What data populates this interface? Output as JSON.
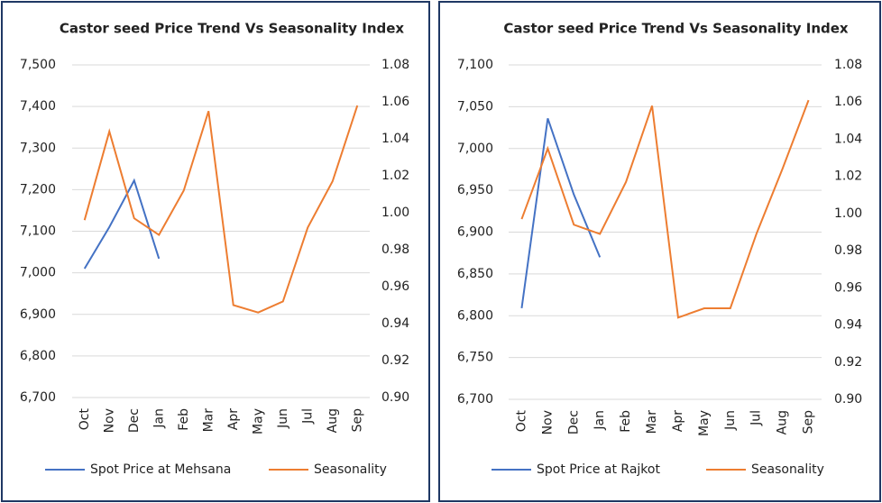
{
  "chart_data": [
    {
      "type": "line",
      "title": "Castor seed Price Trend Vs Seasonality Index",
      "categories": [
        "Oct",
        "Nov",
        "Dec",
        "Jan",
        "Feb",
        "Mar",
        "Apr",
        "May",
        "Jun",
        "Jul",
        "Aug",
        "Sep"
      ],
      "series": [
        {
          "name": "Spot Price at Mehsana",
          "color": "#4472c4",
          "values": [
            7010,
            7110,
            7222,
            7034,
            null,
            null,
            null,
            null,
            null,
            null,
            null,
            null
          ]
        },
        {
          "name": "Seasonality",
          "color": "#ed7d31",
          "axis": "y2",
          "values": [
            0.996,
            1.044,
            0.997,
            0.988,
            1.012,
            1.055,
            0.95,
            0.946,
            0.952,
            0.992,
            1.017,
            1.058
          ]
        }
      ],
      "ylim": [
        6700,
        7500
      ],
      "yticks": [
        {
          "value": 6700,
          "label": "6,700"
        },
        {
          "value": 6800,
          "label": "6,800"
        },
        {
          "value": 6900,
          "label": "6,900"
        },
        {
          "value": 7000,
          "label": "7,000"
        },
        {
          "value": 7100,
          "label": "7,100"
        },
        {
          "value": 7200,
          "label": "7,200"
        },
        {
          "value": 7300,
          "label": "7,300"
        },
        {
          "value": 7400,
          "label": "7,400"
        },
        {
          "value": 7500,
          "label": "7,500"
        }
      ],
      "y2lim": [
        0.9,
        1.08
      ],
      "y2ticks": [
        {
          "value": 0.9,
          "label": "0.90"
        },
        0.92,
        0.94,
        0.96,
        0.98,
        {
          "value": 1,
          "label": "1.00"
        },
        1.02,
        1.04,
        1.06,
        1.08
      ],
      "grid": true,
      "legend": "bottom"
    },
    {
      "type": "line",
      "title": "Castor seed Price Trend Vs Seasonality Index",
      "categories": [
        "Oct",
        "Nov",
        "Dec",
        "Jan",
        "Feb",
        "Mar",
        "Apr",
        "May",
        "Jun",
        "Jul",
        "Aug",
        "Sep"
      ],
      "series": [
        {
          "name": "Spot Price at Rajkot",
          "color": "#4472c4",
          "values": [
            6809,
            7036,
            6945,
            6870,
            null,
            null,
            null,
            null,
            null,
            null,
            null,
            null
          ]
        },
        {
          "name": "Seasonality",
          "color": "#ed7d31",
          "axis": "y2",
          "values": [
            0.997,
            1.035,
            0.994,
            0.989,
            1.017,
            1.058,
            0.944,
            0.949,
            0.949,
            0.989,
            1.024,
            1.061
          ]
        }
      ],
      "ylim": [
        6700,
        7100
      ],
      "yticks": [
        {
          "value": 6700,
          "label": "6,700"
        },
        {
          "value": 6750,
          "label": "6,750"
        },
        {
          "value": 6800,
          "label": "6,800"
        },
        {
          "value": 6850,
          "label": "6,850"
        },
        {
          "value": 6900,
          "label": "6,900"
        },
        {
          "value": 6950,
          "label": "6,950"
        },
        {
          "value": 7000,
          "label": "7,000"
        },
        {
          "value": 7050,
          "label": "7,050"
        },
        {
          "value": 7100,
          "label": "7,100"
        }
      ],
      "y2lim": [
        0.9,
        1.08
      ],
      "y2ticks": [
        {
          "value": 0.9,
          "label": "0.90"
        },
        0.92,
        0.94,
        0.96,
        0.98,
        {
          "value": 1,
          "label": "1.00"
        },
        1.02,
        1.04,
        1.06,
        1.08
      ],
      "grid": true,
      "legend": "bottom"
    }
  ]
}
